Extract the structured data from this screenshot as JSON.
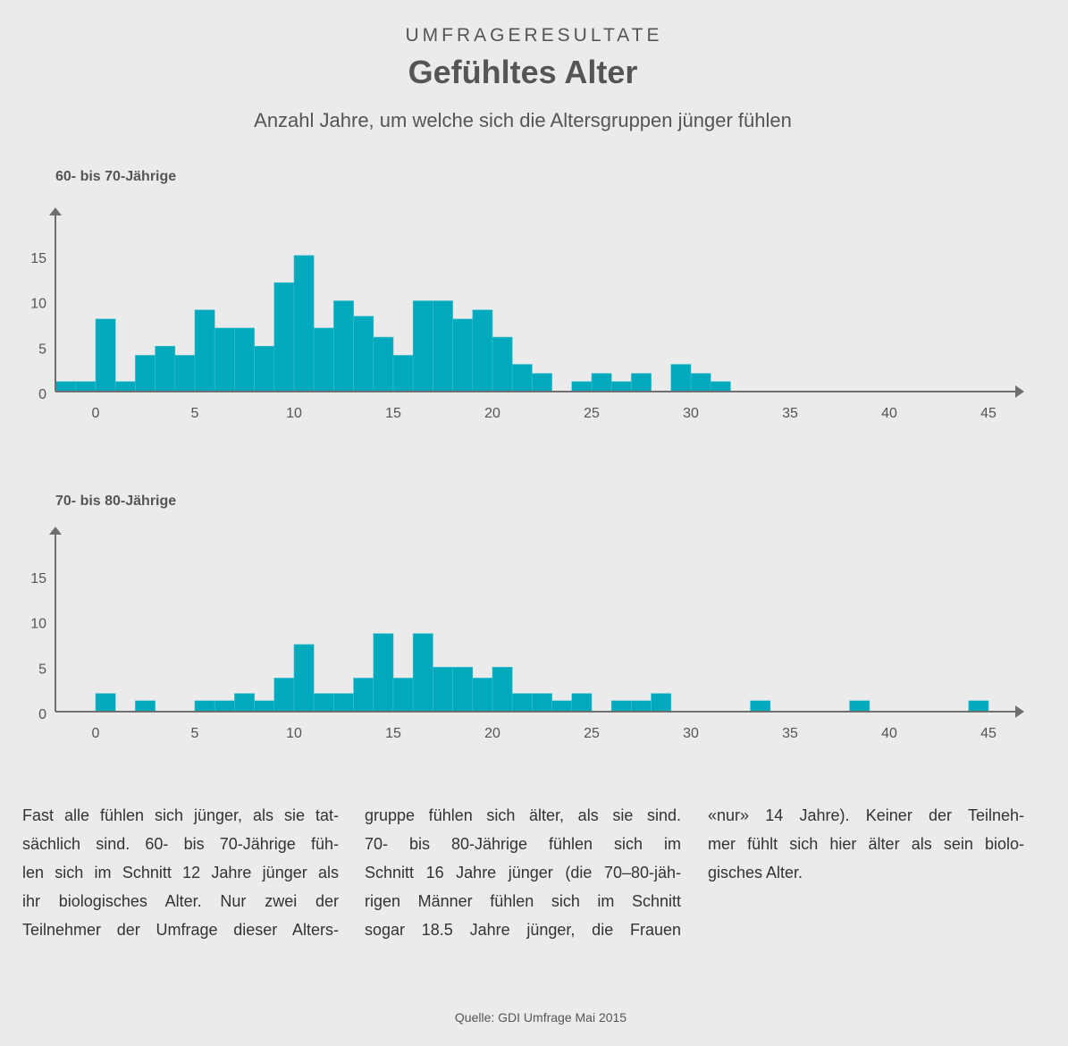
{
  "header": {
    "kicker": "UMFRAGERESULTATE",
    "title": "Gefühltes Alter",
    "subtitle": "Anzahl Jahre, um welche sich die Altersgruppen jünger fühlen"
  },
  "colors": {
    "bar": "#00a9bc",
    "axis": "#707070",
    "text": "#555555",
    "background": "#ebebeb"
  },
  "chart_data": [
    {
      "type": "bar",
      "title": "60- bis 70-Jährige",
      "xlabel": "",
      "ylabel": "",
      "xticks": [
        "0",
        "5",
        "10",
        "15",
        "20",
        "25",
        "30",
        "35",
        "40",
        "45"
      ],
      "yticks": [
        "0",
        "5",
        "10",
        "15"
      ],
      "ylim": [
        0,
        19
      ],
      "xlim": [
        -2,
        46
      ],
      "grid": false,
      "x": [
        -2,
        -1,
        0,
        1,
        2,
        3,
        4,
        5,
        6,
        7,
        8,
        9,
        10,
        11,
        12,
        13,
        14,
        15,
        16,
        17,
        18,
        19,
        20,
        21,
        22,
        23,
        24,
        25,
        26,
        27,
        28,
        29,
        30,
        31
      ],
      "values": [
        1.1,
        1.1,
        8,
        1.1,
        4,
        5,
        4,
        9,
        7,
        7,
        5,
        12,
        15,
        7,
        10,
        8.3,
        6,
        4,
        10,
        10,
        8,
        9,
        6,
        3,
        2,
        0,
        1.1,
        2,
        1.1,
        2,
        0,
        3,
        2,
        1.1
      ]
    },
    {
      "type": "bar",
      "title": "70- bis 80-Jährige",
      "xlabel": "",
      "ylabel": "",
      "xticks": [
        "0",
        "5",
        "10",
        "15",
        "20",
        "25",
        "30",
        "35",
        "40",
        "45"
      ],
      "yticks": [
        "0",
        "5",
        "10",
        "15"
      ],
      "ylim": [
        0,
        19
      ],
      "xlim": [
        -2,
        46
      ],
      "grid": false,
      "x": [
        0,
        2,
        5,
        6,
        7,
        8,
        9,
        10,
        11,
        12,
        13,
        14,
        15,
        16,
        17,
        18,
        19,
        20,
        21,
        22,
        23,
        24,
        26,
        27,
        28,
        33,
        38,
        44
      ],
      "values": [
        2,
        1.2,
        1.2,
        1.2,
        2,
        1.2,
        3.7,
        7.4,
        2,
        2,
        3.7,
        8.6,
        3.7,
        8.6,
        4.9,
        4.9,
        3.7,
        4.9,
        2,
        2,
        1.2,
        2,
        1.2,
        1.2,
        2,
        1.2,
        1.2,
        1.2
      ]
    }
  ],
  "text": {
    "columns": [
      [
        "Fast alle fühlen sich jünger, als sie tat-",
        "sächlich sind. 60- bis 70-Jährige füh-",
        "len sich im Schnitt 12 Jahre jünger als",
        "ihr biologisches Alter. Nur zwei der",
        "Teilnehmer der Umfrage dieser Alters-"
      ],
      [
        "gruppe fühlen sich älter, als sie sind.",
        "70- bis 80-Jährige fühlen sich im",
        "Schnitt 16 Jahre jünger (die 70–80-jäh-",
        "rigen Männer fühlen sich im Schnitt",
        "sogar 18.5 Jahre jünger, die Frauen"
      ],
      [
        "«nur» 14 Jahre). Keiner der Teilneh-",
        "mer fühlt sich hier älter als sein biolo-",
        "gisches Alter."
      ]
    ]
  },
  "source": "Quelle: GDI Umfrage Mai 2015"
}
